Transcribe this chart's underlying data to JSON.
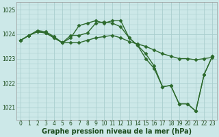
{
  "title": "Graphe pression niveau de la mer (hPa)",
  "bg_color": "#cce8e8",
  "grid_color": "#aacece",
  "line_color": "#2d6a2d",
  "series1": [
    1023.75,
    1023.95,
    1024.1,
    1024.05,
    1023.85,
    1023.65,
    1023.85,
    1024.35,
    1024.45,
    1024.55,
    1024.45,
    1024.55,
    1024.55,
    1023.85,
    1023.55,
    1023.2,
    1022.7,
    1021.85,
    1021.9,
    1021.15,
    1021.15,
    1020.85,
    1022.35,
    1023.1
  ],
  "series2": [
    1023.75,
    1023.95,
    1024.1,
    1024.05,
    1023.85,
    1023.65,
    1023.65,
    1023.65,
    1023.75,
    1023.85,
    1023.9,
    1023.95,
    1023.85,
    1023.7,
    1023.6,
    1023.5,
    1023.35,
    1023.2,
    1023.1,
    1023.0,
    1023.0,
    1022.95,
    1023.0,
    1023.05
  ],
  "series3": [
    1023.75,
    1023.95,
    1024.15,
    1024.1,
    1023.9,
    1023.65,
    1023.95,
    1023.95,
    1024.05,
    1024.45,
    1024.5,
    1024.45,
    1024.3,
    1023.85,
    1023.55,
    1023.0,
    1022.6,
    1021.85,
    1021.9,
    1021.15,
    1021.15,
    1020.85,
    1022.35,
    1023.1
  ],
  "x_labels": [
    "0",
    "1",
    "2",
    "3",
    "4",
    "5",
    "6",
    "7",
    "8",
    "9",
    "10",
    "11",
    "12",
    "13",
    "14",
    "15",
    "16",
    "17",
    "18",
    "19",
    "20",
    "21",
    "22",
    "23"
  ],
  "ylim": [
    1020.5,
    1025.3
  ],
  "yticks": [
    1021,
    1022,
    1023,
    1024,
    1025
  ],
  "marker": "D",
  "markersize": 2.5,
  "linewidth": 1.0,
  "title_fontsize": 7.0,
  "tick_fontsize": 5.5,
  "title_color": "#1a4a1a"
}
